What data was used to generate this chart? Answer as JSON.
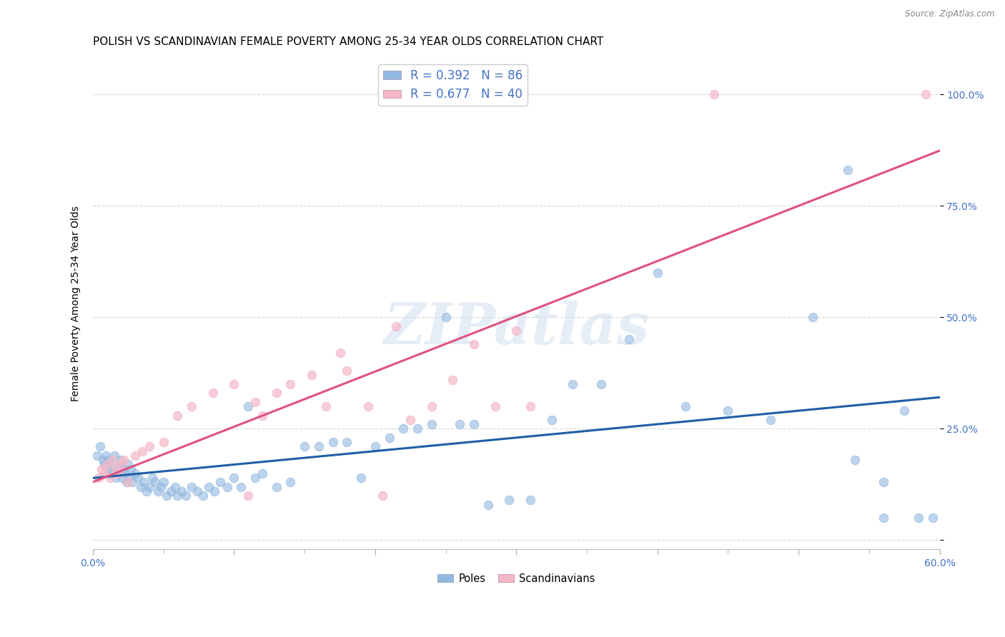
{
  "title": "POLISH VS SCANDINAVIAN FEMALE POVERTY AMONG 25-34 YEAR OLDS CORRELATION CHART",
  "source": "Source: ZipAtlas.com",
  "ylabel": "Female Poverty Among 25-34 Year Olds",
  "xlim": [
    0.0,
    0.6
  ],
  "ylim": [
    -0.02,
    1.08
  ],
  "poles_R": 0.392,
  "poles_N": 86,
  "scandinavians_R": 0.677,
  "scandinavians_N": 40,
  "poles_color": "#92b8e0",
  "poles_edge_color": "#92b8e0",
  "poles_line_color": "#1f5fa6",
  "scandinavians_color": "#f4b8c8",
  "scandinavians_edge_color": "#f4b8c8",
  "scandinavians_line_color": "#e05080",
  "background_color": "#ffffff",
  "grid_color": "#d8d8d8",
  "tick_color": "#4472c4",
  "title_fontsize": 11,
  "axis_label_fontsize": 10,
  "tick_fontsize": 10,
  "legend_fontsize": 12,
  "watermark_color": "#ccdcf0",
  "poles_x": [
    0.003,
    0.005,
    0.007,
    0.008,
    0.009,
    0.01,
    0.011,
    0.012,
    0.013,
    0.015,
    0.016,
    0.017,
    0.018,
    0.019,
    0.02,
    0.021,
    0.022,
    0.023,
    0.024,
    0.025,
    0.026,
    0.027,
    0.028,
    0.03,
    0.032,
    0.034,
    0.036,
    0.038,
    0.04,
    0.042,
    0.044,
    0.046,
    0.048,
    0.05,
    0.052,
    0.055,
    0.058,
    0.06,
    0.063,
    0.066,
    0.07,
    0.074,
    0.078,
    0.082,
    0.086,
    0.09,
    0.095,
    0.1,
    0.105,
    0.11,
    0.115,
    0.12,
    0.13,
    0.14,
    0.15,
    0.16,
    0.17,
    0.18,
    0.19,
    0.2,
    0.21,
    0.22,
    0.23,
    0.24,
    0.25,
    0.26,
    0.27,
    0.28,
    0.295,
    0.31,
    0.325,
    0.34,
    0.36,
    0.38,
    0.4,
    0.42,
    0.45,
    0.48,
    0.51,
    0.54,
    0.56,
    0.575,
    0.585,
    0.595,
    0.56,
    0.535
  ],
  "poles_y": [
    0.19,
    0.21,
    0.18,
    0.17,
    0.19,
    0.16,
    0.18,
    0.15,
    0.17,
    0.19,
    0.14,
    0.16,
    0.15,
    0.18,
    0.17,
    0.14,
    0.16,
    0.15,
    0.13,
    0.17,
    0.14,
    0.16,
    0.13,
    0.15,
    0.14,
    0.12,
    0.13,
    0.11,
    0.12,
    0.14,
    0.13,
    0.11,
    0.12,
    0.13,
    0.1,
    0.11,
    0.12,
    0.1,
    0.11,
    0.1,
    0.12,
    0.11,
    0.1,
    0.12,
    0.11,
    0.13,
    0.12,
    0.14,
    0.12,
    0.3,
    0.14,
    0.15,
    0.12,
    0.13,
    0.21,
    0.21,
    0.22,
    0.22,
    0.14,
    0.21,
    0.23,
    0.25,
    0.25,
    0.26,
    0.5,
    0.26,
    0.26,
    0.08,
    0.09,
    0.09,
    0.27,
    0.35,
    0.35,
    0.45,
    0.6,
    0.3,
    0.29,
    0.27,
    0.5,
    0.18,
    0.13,
    0.29,
    0.05,
    0.05,
    0.05,
    0.83
  ],
  "scand_x": [
    0.004,
    0.006,
    0.008,
    0.01,
    0.012,
    0.014,
    0.016,
    0.018,
    0.02,
    0.022,
    0.025,
    0.03,
    0.035,
    0.04,
    0.05,
    0.06,
    0.07,
    0.085,
    0.1,
    0.11,
    0.115,
    0.12,
    0.13,
    0.14,
    0.155,
    0.165,
    0.175,
    0.18,
    0.195,
    0.205,
    0.215,
    0.225,
    0.24,
    0.255,
    0.27,
    0.285,
    0.3,
    0.31,
    0.44,
    0.59
  ],
  "scand_y": [
    0.14,
    0.16,
    0.15,
    0.17,
    0.14,
    0.18,
    0.16,
    0.15,
    0.17,
    0.18,
    0.13,
    0.19,
    0.2,
    0.21,
    0.22,
    0.28,
    0.3,
    0.33,
    0.35,
    0.1,
    0.31,
    0.28,
    0.33,
    0.35,
    0.37,
    0.3,
    0.42,
    0.38,
    0.3,
    0.1,
    0.48,
    0.27,
    0.3,
    0.36,
    0.44,
    0.3,
    0.47,
    0.3,
    1.0,
    1.0
  ]
}
